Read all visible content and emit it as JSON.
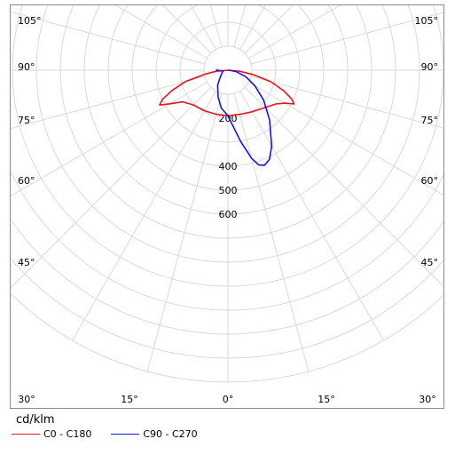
{
  "chart_data": {
    "type": "polar",
    "unit_label": "cd/klm",
    "radial_ticks": [
      200,
      400,
      500,
      600
    ],
    "angle_labels_left": [
      "105°",
      "90°",
      "75°",
      "60°",
      "45°",
      "30°",
      "15°"
    ],
    "angle_labels_bottom": [
      "30°",
      "15°",
      "0°",
      "15°",
      "30°"
    ],
    "series": [
      {
        "name": "C0 - C180",
        "color": "#e8141b",
        "points": [
          {
            "angle": -90,
            "r": 0
          },
          {
            "angle": -85,
            "r": 50
          },
          {
            "angle": -80,
            "r": 100
          },
          {
            "angle": -75,
            "r": 185
          },
          {
            "angle": -70,
            "r": 250
          },
          {
            "angle": -66,
            "r": 300
          },
          {
            "angle": -63,
            "r": 320
          },
          {
            "angle": -60,
            "r": 280
          },
          {
            "angle": -55,
            "r": 230
          },
          {
            "angle": -45,
            "r": 205
          },
          {
            "angle": -30,
            "r": 195
          },
          {
            "angle": -15,
            "r": 190
          },
          {
            "angle": 0,
            "r": 190
          },
          {
            "angle": 15,
            "r": 190
          },
          {
            "angle": 30,
            "r": 200
          },
          {
            "angle": 45,
            "r": 220
          },
          {
            "angle": 55,
            "r": 245
          },
          {
            "angle": 60,
            "r": 275
          },
          {
            "angle": 63,
            "r": 310
          },
          {
            "angle": 66,
            "r": 290
          },
          {
            "angle": 70,
            "r": 245
          },
          {
            "angle": 75,
            "r": 185
          },
          {
            "angle": 80,
            "r": 110
          },
          {
            "angle": 85,
            "r": 50
          },
          {
            "angle": 90,
            "r": 0
          }
        ]
      },
      {
        "name": "C90 - C270",
        "color": "#1414e6",
        "points": [
          {
            "angle": -93,
            "r": 50
          },
          {
            "angle": -90,
            "r": 45
          },
          {
            "angle": -80,
            "r": 20
          },
          {
            "angle": -70,
            "r": 25
          },
          {
            "angle": -50,
            "r": 40
          },
          {
            "angle": -35,
            "r": 75
          },
          {
            "angle": -20,
            "r": 120
          },
          {
            "angle": -10,
            "r": 160
          },
          {
            "angle": 0,
            "r": 190
          },
          {
            "angle": 10,
            "r": 300
          },
          {
            "angle": 15,
            "r": 380
          },
          {
            "angle": 18,
            "r": 415
          },
          {
            "angle": 21,
            "r": 425
          },
          {
            "angle": 25,
            "r": 410
          },
          {
            "angle": 30,
            "r": 365
          },
          {
            "angle": 40,
            "r": 270
          },
          {
            "angle": 50,
            "r": 195
          },
          {
            "angle": 60,
            "r": 130
          },
          {
            "angle": 70,
            "r": 80
          },
          {
            "angle": 80,
            "r": 35
          },
          {
            "angle": 88,
            "r": 5
          },
          {
            "angle": 90,
            "r": 0
          }
        ]
      }
    ]
  }
}
